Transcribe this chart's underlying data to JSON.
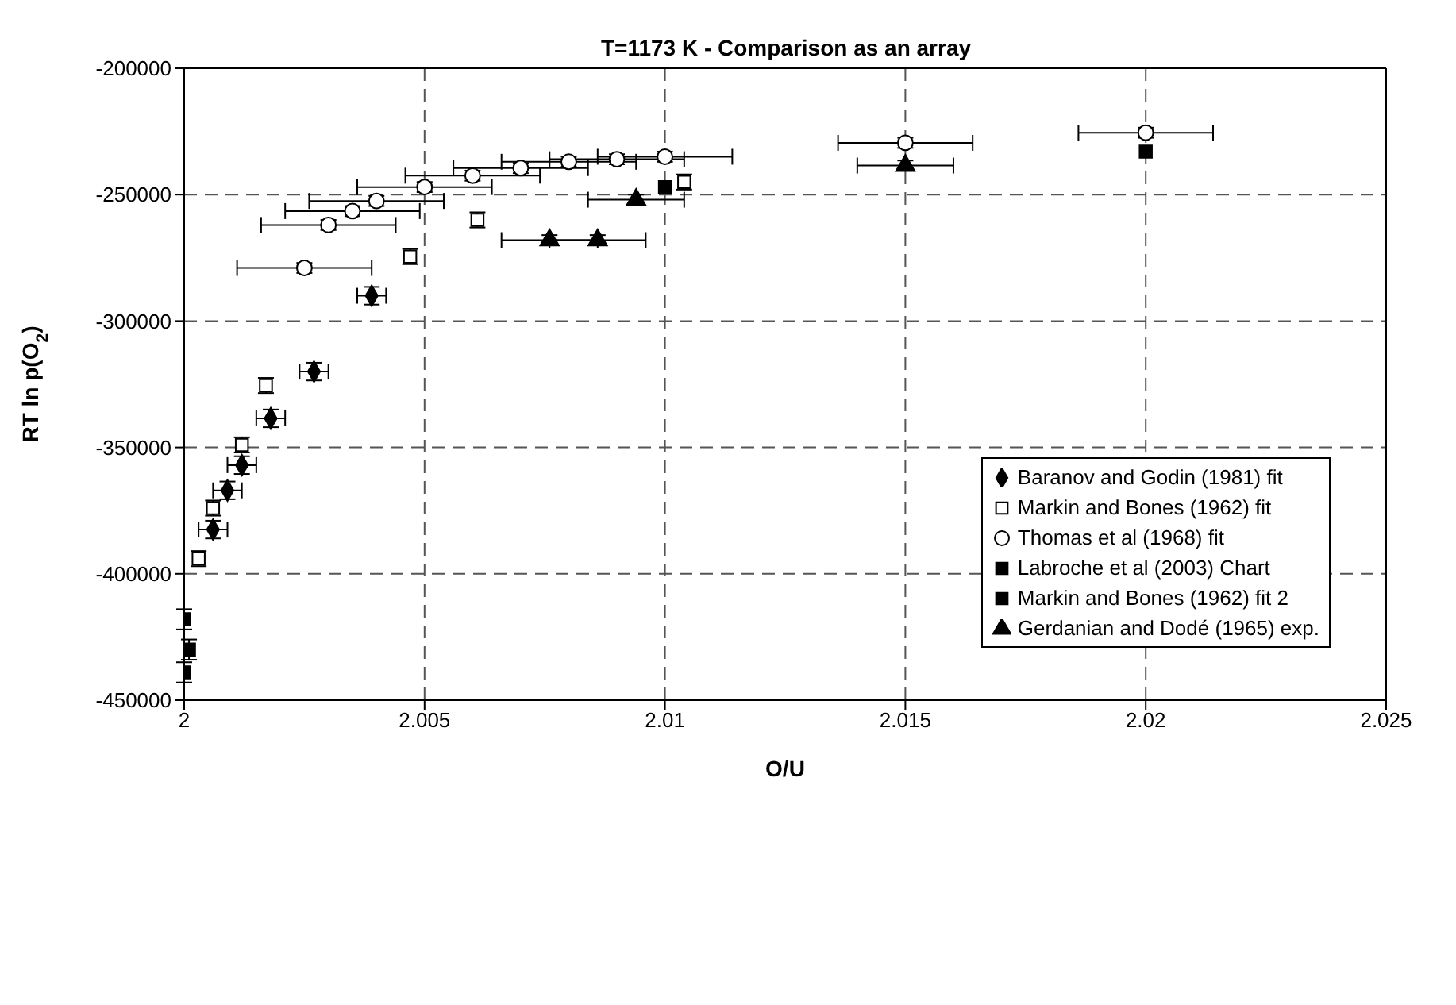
{
  "chart_data": {
    "type": "scatter",
    "title": "T=1173 K - Comparison as an array",
    "xlabel": "O/U",
    "ylabel": "RT ln p(O$_{2}$)",
    "xlim": [
      2,
      2.025
    ],
    "xticks": [
      2,
      2.005,
      2.01,
      2.015,
      2.02,
      2.025
    ],
    "ylim": [
      -450000,
      -200000
    ],
    "yticks": [
      -450000,
      -400000,
      -350000,
      -300000,
      -250000,
      -200000
    ],
    "grid": true,
    "legend": "right",
    "series": [
      {
        "name": "Baranov and Godin (1981) fit",
        "color": "#000000",
        "marker": "diamond",
        "x": [
          2.0039,
          2.0027,
          2.0018,
          2.0012,
          2.0009,
          2.0006
        ],
        "values": [
          -290000,
          -320000,
          -338500,
          -357000,
          -367000,
          -382500
        ],
        "errors": [
          3500,
          3500,
          3500,
          3500,
          3500,
          3500
        ],
        "xerrors": [
          0.0003,
          0.0003,
          0.0003,
          0.0003,
          0.0003,
          0.0003
        ]
      },
      {
        "name": "Markin and Bones (1962) fit",
        "color": "#ffffff",
        "marker": "square",
        "x": [
          2.0003,
          2.0006,
          2.0012,
          2.0017,
          2.0047,
          2.0061,
          2.0104
        ],
        "values": [
          -394000,
          -374000,
          -349000,
          -325500,
          -274500,
          -260000,
          -245000
        ],
        "errors": [
          3000,
          3000,
          3000,
          3000,
          3000,
          3000,
          3000
        ]
      },
      {
        "name": "Thomas et al (1968) fit",
        "color": "#ffffff",
        "marker": "circle",
        "x": [
          2.0025,
          2.003,
          2.0035,
          2.004,
          2.005,
          2.006,
          2.007,
          2.008,
          2.009,
          2.01,
          2.015,
          2.02
        ],
        "values": [
          -279000,
          -262000,
          -256500,
          -252500,
          -247000,
          -242500,
          -239500,
          -237000,
          -236000,
          -235000,
          -229500,
          -225500
        ],
        "errors": [
          2000,
          2000,
          2000,
          2000,
          2000,
          2000,
          2000,
          2000,
          2000,
          2000,
          2000,
          2000
        ],
        "xerrors": [
          0.0014,
          0.0014,
          0.0014,
          0.0014,
          0.0014,
          0.0014,
          0.0014,
          0.0014,
          0.0014,
          0.0014,
          0.0014,
          0.0014
        ]
      },
      {
        "name": "Labroche et al (2003) Chart",
        "color": "#000000",
        "marker": "square",
        "x": [
          2.01,
          2.02
        ],
        "values": [
          -247000,
          -233000
        ]
      },
      {
        "name": "Markin and Bones (1962) fit 2",
        "color": "#000000",
        "marker": "square",
        "x": [
          2,
          2.0001,
          2
        ],
        "values": [
          -418000,
          -430000,
          -439000
        ],
        "errors": [
          4000,
          4000,
          4000
        ]
      },
      {
        "name": "Gerdanian and Dodé (1965) exp.",
        "color": "#000000",
        "marker": "triangle",
        "x": [
          2.0076,
          2.0086,
          2.0094,
          2.015
        ],
        "values": [
          -268000,
          -268000,
          -252000,
          -238500
        ],
        "errors": [
          2000,
          2000,
          2000,
          2000
        ],
        "xerrors": [
          0.001,
          0.001,
          0.001,
          0.001
        ]
      }
    ]
  }
}
